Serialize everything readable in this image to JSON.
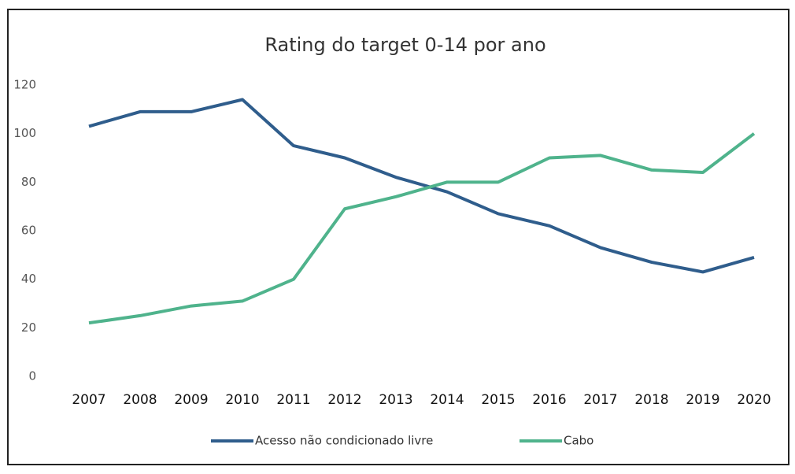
{
  "chart_data": {
    "type": "line",
    "title": "Rating do target 0-14 por ano",
    "categories": [
      "2007",
      "2008",
      "2009",
      "2010",
      "2011",
      "2012",
      "2013",
      "2014",
      "2015",
      "2016",
      "2017",
      "2018",
      "2019",
      "2020"
    ],
    "series": [
      {
        "name": "Acesso não condicionado livre",
        "color": "#2f5d8c",
        "values": [
          103,
          109,
          109,
          114,
          95,
          90,
          82,
          76,
          67,
          62,
          53,
          47,
          43,
          49
        ]
      },
      {
        "name": "Cabo",
        "color": "#4fb38c",
        "values": [
          22,
          25,
          29,
          31,
          40,
          69,
          74,
          80,
          80,
          90,
          91,
          85,
          84,
          100
        ]
      }
    ],
    "ylim": [
      0,
      120
    ],
    "yticks": [
      0,
      20,
      40,
      60,
      80,
      100,
      120
    ],
    "grid": false,
    "legend": "bottom"
  }
}
